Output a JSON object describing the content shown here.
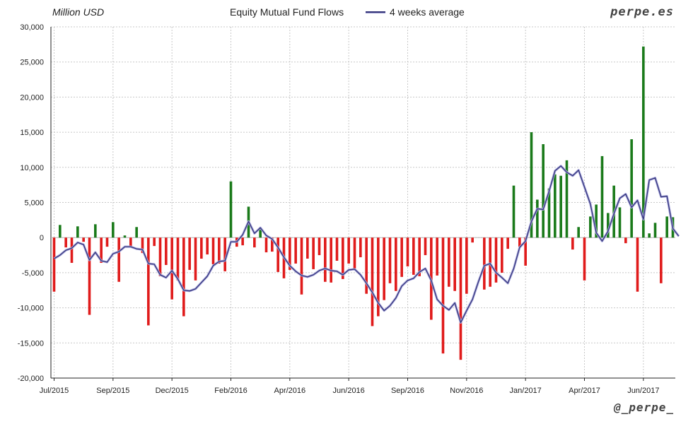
{
  "header": {
    "unit_label": "Million USD",
    "title": "Equity Mutual Fund Flows",
    "legend_label": "4 weeks average",
    "brand": "perpe.es",
    "handle": "@_perpe_"
  },
  "colors": {
    "positive": "#1a7a1a",
    "negative": "#e01b1b",
    "average_line": "#35357a",
    "average_glow": "#a8a8dd",
    "grid": "#c8c8c8",
    "axis": "#222222"
  },
  "chart_data": {
    "type": "bar",
    "title": "Equity Mutual Fund Flows",
    "ylabel": "Million USD",
    "xlabel": "",
    "ylim": [
      -20000,
      30000
    ],
    "y_ticks": [
      -20000,
      -15000,
      -10000,
      -5000,
      0,
      5000,
      10000,
      15000,
      20000,
      25000,
      30000
    ],
    "y_tick_labels": [
      "-20,000",
      "-15,000",
      "-10,000",
      "-5,000",
      "0",
      "5,000",
      "10,000",
      "15,000",
      "20,000",
      "25,000",
      "30,000"
    ],
    "x_tick_labels": [
      "Jul/2015",
      "Sep/2015",
      "Dec/2015",
      "Feb/2016",
      "Apr/2016",
      "Jun/2016",
      "Sep/2016",
      "Nov/2016",
      "Jan/2017",
      "Apr/2017",
      "Jun/2017"
    ],
    "x_tick_weeks": [
      0,
      10,
      20,
      30,
      40,
      50,
      60,
      70,
      80,
      90,
      100
    ],
    "grid": true,
    "legend": "top",
    "series": [
      {
        "name": "Equity Mutual Fund Flows",
        "kind": "bar",
        "values": [
          -7700,
          1800,
          -1400,
          -3600,
          1600,
          -600,
          -11000,
          1900,
          -3600,
          -1300,
          2200,
          -6300,
          300,
          -1400,
          1500,
          -2200,
          -12500,
          -1200,
          -5500,
          -3900,
          -8800,
          -6100,
          -11200,
          -4600,
          -6100,
          -3000,
          -2400,
          -3800,
          -3700,
          -4800,
          8000,
          -1300,
          -1100,
          4400,
          -1400,
          1400,
          -2100,
          -2000,
          -4900,
          -5800,
          -4600,
          -3700,
          -8100,
          -3000,
          -4500,
          -2500,
          -6300,
          -6400,
          -3300,
          -5900,
          -3700,
          -4400,
          -2800,
          -8000,
          -12600,
          -11200,
          -8900,
          -6500,
          -7600,
          -5600,
          -4100,
          -5300,
          -5500,
          -2500,
          -11700,
          -5400,
          -16500,
          -7000,
          -7600,
          -17400,
          -8000,
          -700,
          0,
          -7400,
          -7000,
          -6400,
          -5000,
          -1600,
          7400,
          -1300,
          -4000,
          15000,
          5400,
          13300,
          7000,
          9000,
          8800,
          11000,
          -1700,
          1500,
          -6100,
          3000,
          4700,
          11600,
          3500,
          7400,
          4300,
          -800,
          14000,
          -7700,
          27200,
          600,
          2100,
          -6500,
          3000,
          2900
        ]
      },
      {
        "name": "4 weeks average",
        "kind": "line",
        "values": [
          -3000,
          -2500,
          -1800,
          -1500,
          -700,
          -1000,
          -3200,
          -2100,
          -3300,
          -3500,
          -2300,
          -2000,
          -1300,
          -1300,
          -1600,
          -1700,
          -3700,
          -3800,
          -5300,
          -5700,
          -4700,
          -5900,
          -7500,
          -7600,
          -7300,
          -6400,
          -5500,
          -4000,
          -3400,
          -3300,
          -600,
          -600,
          400,
          2300,
          600,
          1400,
          300,
          -200,
          -1400,
          -2800,
          -4000,
          -4800,
          -5400,
          -5600,
          -5300,
          -4700,
          -4400,
          -4700,
          -4800,
          -5300,
          -4600,
          -4500,
          -5300,
          -6500,
          -7800,
          -9300,
          -10400,
          -9700,
          -8600,
          -6900,
          -6100,
          -5800,
          -4900,
          -4400,
          -6100,
          -8800,
          -9700,
          -10300,
          -9300,
          -12100,
          -10400,
          -8800,
          -6300,
          -4000,
          -3700,
          -5000,
          -5700,
          -6500,
          -4400,
          -1400,
          -500,
          2300,
          4100,
          4000,
          6600,
          9500,
          10200,
          9300,
          8800,
          9600,
          7200,
          4800,
          700,
          -500,
          900,
          3400,
          5600,
          6200,
          4300,
          5300,
          2600,
          8200,
          8500,
          5800,
          5900,
          1300,
          200
        ]
      }
    ]
  }
}
